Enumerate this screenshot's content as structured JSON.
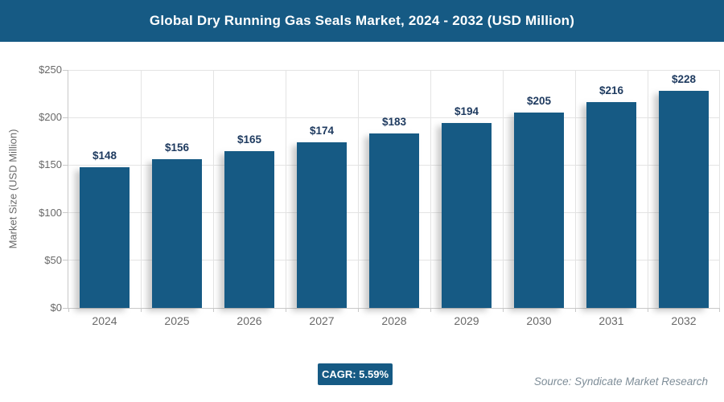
{
  "header": {
    "title": "Global Dry Running Gas Seals Market, 2024 - 2032 (USD Million)"
  },
  "chart_data": {
    "type": "bar",
    "title": "Global Dry Running Gas Seals Market, 2024 - 2032 (USD Million)",
    "categories": [
      "2024",
      "2025",
      "2026",
      "2027",
      "2028",
      "2029",
      "2030",
      "2031",
      "2032"
    ],
    "values": [
      148,
      156,
      165,
      174,
      183,
      194,
      205,
      216,
      228
    ],
    "value_labels": [
      "$148",
      "$156",
      "$165",
      "$174",
      "$183",
      "$194",
      "$205",
      "$216",
      "$228"
    ],
    "value_prefix": "$",
    "xlabel": "",
    "ylabel": "Market Size (USD Million)",
    "ylim": [
      0,
      250
    ],
    "ytick_step": 50,
    "ytick_labels": [
      "$0",
      "$50",
      "$100",
      "$150",
      "$200",
      "$250"
    ],
    "grid": true,
    "legend_position": "none"
  },
  "footer": {
    "cagr_label": "CAGR: 5.59%",
    "source": "Source: Syndicate Market Research"
  },
  "colors": {
    "accent": "#165a84",
    "title_text": "#ffffff",
    "data_label": "#1e3a5f",
    "tick_label": "#696969",
    "gridline": "#e4e4e4",
    "axis_line": "#c9c9c9",
    "source_text": "#7e8d98",
    "panel_bg": "#ffffff"
  }
}
